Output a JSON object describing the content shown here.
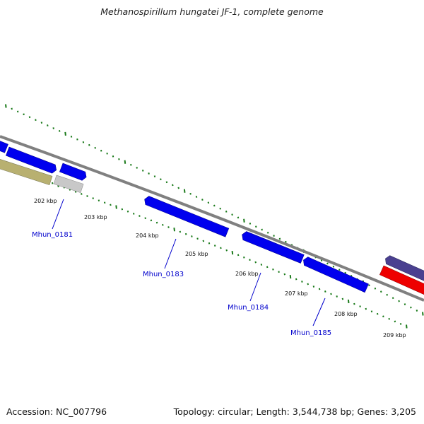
{
  "title": "Methanospirillum hungatei JF-1, complete genome",
  "footer": {
    "accession": "Accession: NC_007796",
    "summary": "Topology: circular; Length: 3,544,738 bp; Genes: 3,205"
  },
  "tick_labels": [
    "202 kbp",
    "203 kbp",
    "204 kbp",
    "205 kbp",
    "206 kbp",
    "207 kbp",
    "208 kbp",
    "209 kbp"
  ],
  "gene_labels": [
    "Mhun_0181",
    "Mhun_0183",
    "Mhun_0184",
    "Mhun_0185"
  ],
  "colors": {
    "backbone": "#808080",
    "tick": "#1a7a1a",
    "gene_blue": "#0000ee",
    "gene_label": "#0000cc",
    "olive": "#b8b070",
    "grey_segment": "#c8c8c8",
    "purple": "#4a4090",
    "red": "#ee0000"
  }
}
